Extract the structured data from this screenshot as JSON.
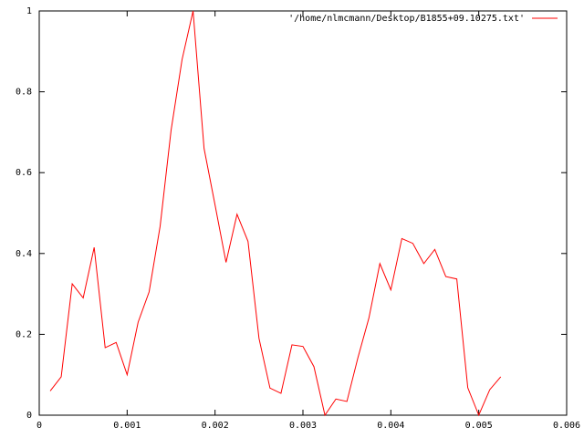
{
  "chart_data": {
    "type": "line",
    "x": [
      0.000125,
      0.00025,
      0.000375,
      0.0005,
      0.000625,
      0.00075,
      0.000875,
      0.001,
      0.001125,
      0.00125,
      0.001375,
      0.0015,
      0.001625,
      0.00175,
      0.001875,
      0.002,
      0.002125,
      0.00225,
      0.002375,
      0.0025,
      0.002625,
      0.00275,
      0.002875,
      0.003,
      0.003125,
      0.00325,
      0.003375,
      0.0035,
      0.003625,
      0.00375,
      0.003875,
      0.004,
      0.004125,
      0.00425,
      0.004375,
      0.0045,
      0.004625,
      0.00475,
      0.004875,
      0.005,
      0.005125,
      0.00525
    ],
    "series": [
      {
        "name": "'/home/nlmcmann/Desktop/B1855+09.10275.txt'",
        "color": "#ff0000",
        "values": [
          0.06,
          0.095,
          0.325,
          0.29,
          0.415,
          0.167,
          0.18,
          0.1,
          0.23,
          0.305,
          0.467,
          0.705,
          0.88,
          1.0,
          0.66,
          0.52,
          0.378,
          0.497,
          0.43,
          0.19,
          0.067,
          0.054,
          0.174,
          0.17,
          0.12,
          0.0,
          0.04,
          0.034,
          0.142,
          0.24,
          0.375,
          0.31,
          0.437,
          0.425,
          0.375,
          0.41,
          0.343,
          0.337,
          0.068,
          0.0,
          0.063,
          0.095
        ]
      }
    ],
    "xlim": [
      0,
      0.006
    ],
    "xticks": [
      0,
      0.001,
      0.002,
      0.003,
      0.004,
      0.005,
      0.006
    ],
    "ylim": [
      0,
      1
    ],
    "yticks": [
      0,
      0.2,
      0.4,
      0.6,
      0.8,
      1
    ],
    "grid": false,
    "legend": "top-right"
  }
}
